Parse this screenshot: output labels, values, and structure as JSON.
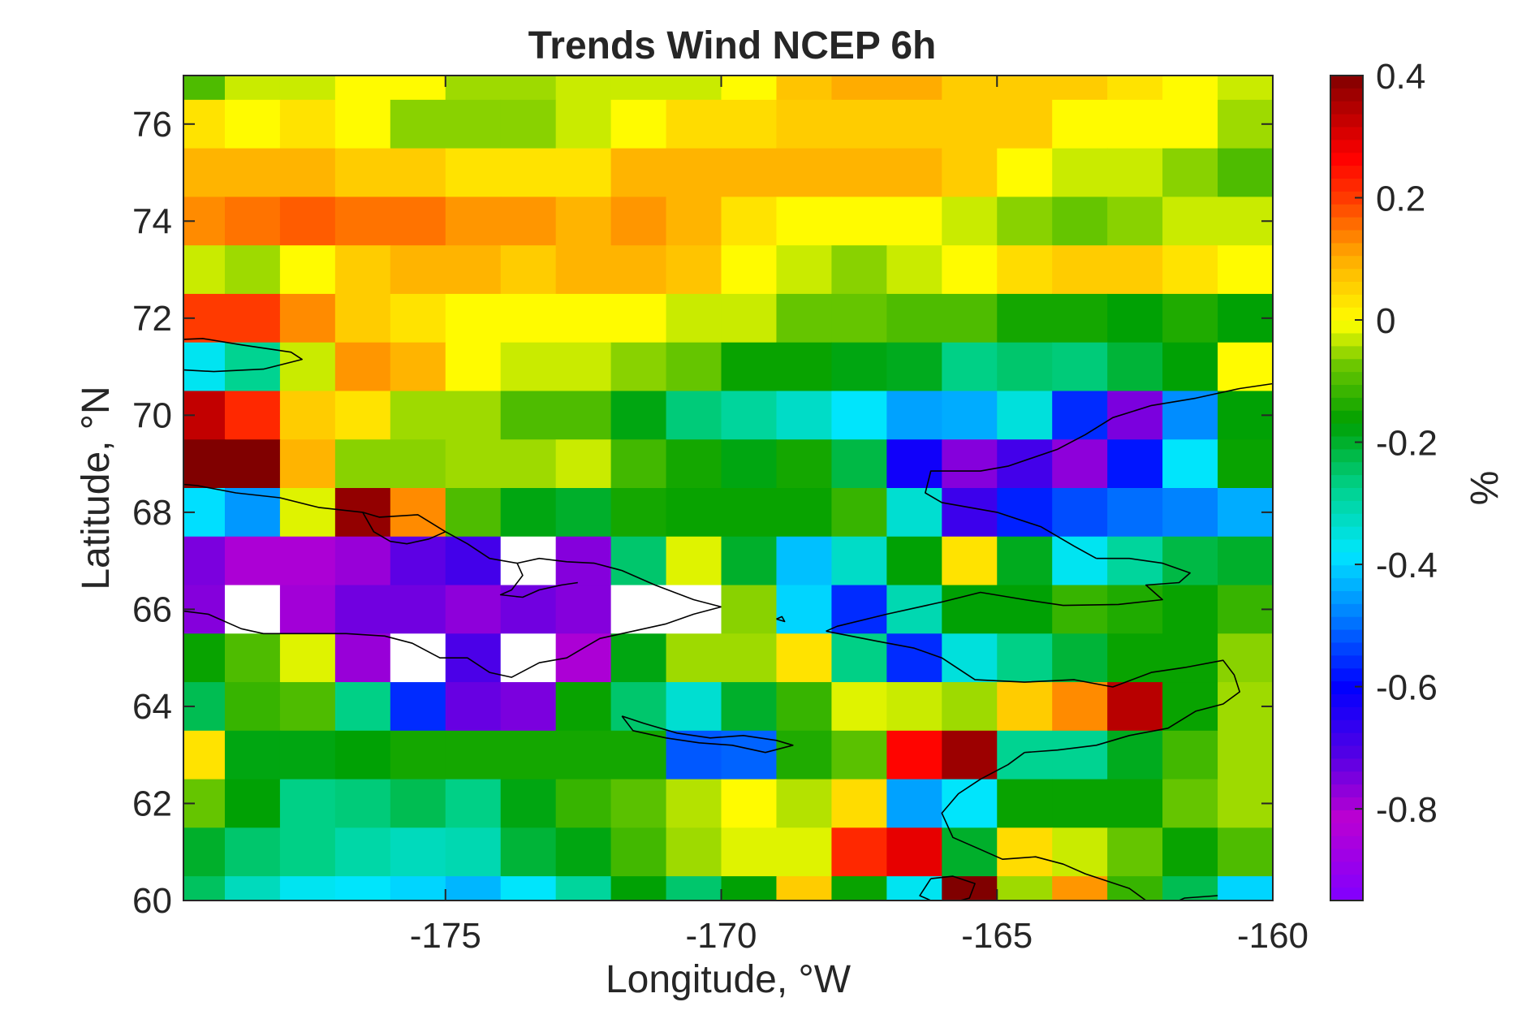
{
  "chart_data": {
    "type": "heatmap",
    "title": "Trends Wind NCEP 6h",
    "xlabel": "Longitude, °W",
    "ylabel": "Latitude, °N",
    "xlim": [
      -179.75,
      -160.0
    ],
    "ylim": [
      60.0,
      77.0
    ],
    "xticks": [
      -175,
      -170,
      -165,
      -160
    ],
    "xtick_labels": [
      "-175",
      "-170",
      "-165",
      "-160"
    ],
    "yticks": [
      60,
      62,
      64,
      66,
      68,
      70,
      72,
      74,
      76
    ],
    "ytick_labels": [
      "60",
      "62",
      "64",
      "66",
      "68",
      "70",
      "72",
      "74",
      "76"
    ],
    "colorbar": {
      "label": "%",
      "range": [
        -0.95,
        0.4
      ],
      "ticks": [
        0.4,
        0.2,
        0,
        -0.2,
        -0.4,
        -0.6,
        -0.8
      ],
      "tick_labels": [
        "0.4",
        "0.2",
        "0",
        "-0.2",
        "-0.4",
        "-0.6",
        "-0.8"
      ]
    },
    "grid": false,
    "legend": "colorbar right",
    "cell_size_deg": 1.0,
    "x_edges_first_last": [
      -179.5,
      -160.5
    ],
    "rows_lat_top_to_bottom": [
      77,
      76,
      75,
      74,
      73,
      72,
      71,
      70,
      69,
      68,
      67,
      66,
      65,
      64,
      63,
      62,
      61,
      60
    ],
    "values_top_to_bottom": [
      [
        -0.1,
        -0.03,
        -0.03,
        0.0,
        0.0,
        -0.05,
        -0.05,
        -0.03,
        -0.03,
        -0.03,
        0.0,
        0.07,
        0.1,
        0.1,
        0.06,
        0.06,
        0.06,
        0.03,
        0.0,
        -0.03
      ],
      [
        0.03,
        0.0,
        0.03,
        0.0,
        -0.06,
        -0.06,
        -0.06,
        -0.03,
        0.0,
        0.04,
        0.04,
        0.06,
        0.06,
        0.06,
        0.06,
        0.06,
        0.0,
        0.0,
        0.0,
        -0.05
      ],
      [
        0.09,
        0.09,
        0.09,
        0.06,
        0.06,
        0.03,
        0.03,
        0.03,
        0.09,
        0.09,
        0.09,
        0.09,
        0.09,
        0.09,
        0.06,
        0.0,
        -0.03,
        -0.03,
        -0.06,
        -0.1
      ],
      [
        0.13,
        0.15,
        0.17,
        0.15,
        0.15,
        0.12,
        0.12,
        0.09,
        0.12,
        0.09,
        0.03,
        0.0,
        0.0,
        0.0,
        -0.03,
        -0.06,
        -0.08,
        -0.06,
        -0.03,
        -0.03
      ],
      [
        -0.03,
        -0.05,
        0.0,
        0.06,
        0.09,
        0.09,
        0.06,
        0.09,
        0.09,
        0.07,
        0.0,
        -0.03,
        -0.06,
        -0.03,
        0.0,
        0.04,
        0.06,
        0.06,
        0.03,
        0.0
      ],
      [
        0.2,
        0.2,
        0.13,
        0.06,
        0.03,
        0.0,
        0.0,
        0.0,
        0.0,
        -0.03,
        -0.03,
        -0.08,
        -0.08,
        -0.1,
        -0.1,
        -0.15,
        -0.15,
        -0.17,
        -0.14,
        -0.17
      ],
      [
        -0.37,
        -0.28,
        -0.03,
        0.12,
        0.09,
        0.0,
        -0.03,
        -0.03,
        -0.06,
        -0.08,
        -0.16,
        -0.16,
        -0.18,
        -0.19,
        -0.27,
        -0.25,
        -0.26,
        -0.21,
        -0.17,
        0.0
      ],
      [
        0.33,
        0.22,
        0.06,
        0.03,
        -0.05,
        -0.05,
        -0.1,
        -0.1,
        -0.18,
        -0.26,
        -0.29,
        -0.33,
        -0.38,
        -0.45,
        -0.44,
        -0.35,
        -0.56,
        -0.75,
        -0.47,
        -0.17
      ],
      [
        0.4,
        0.4,
        0.09,
        -0.06,
        -0.06,
        -0.05,
        -0.05,
        -0.03,
        -0.11,
        -0.15,
        -0.18,
        -0.15,
        -0.22,
        -0.62,
        -0.76,
        -0.69,
        -0.77,
        -0.58,
        -0.38,
        -0.16
      ],
      [
        -0.39,
        -0.46,
        -0.02,
        0.38,
        0.13,
        -0.1,
        -0.18,
        -0.2,
        -0.15,
        -0.16,
        -0.16,
        -0.16,
        -0.12,
        -0.34,
        -0.68,
        -0.57,
        -0.53,
        -0.5,
        -0.48,
        -0.44
      ],
      [
        -0.75,
        -0.8,
        -0.8,
        -0.78,
        -0.72,
        -0.69,
        null,
        -0.76,
        -0.25,
        -0.02,
        -0.2,
        -0.42,
        -0.33,
        -0.17,
        0.03,
        -0.19,
        -0.37,
        -0.29,
        -0.22,
        -0.2
      ],
      [
        -0.76,
        null,
        -0.79,
        -0.74,
        -0.74,
        -0.77,
        -0.74,
        -0.76,
        null,
        null,
        -0.06,
        -0.4,
        -0.56,
        -0.31,
        -0.17,
        -0.17,
        -0.12,
        -0.14,
        -0.16,
        -0.12
      ],
      [
        -0.16,
        -0.1,
        -0.02,
        -0.78,
        null,
        -0.7,
        null,
        -0.8,
        -0.18,
        -0.05,
        -0.05,
        0.03,
        -0.27,
        -0.56,
        -0.35,
        -0.27,
        -0.21,
        -0.16,
        -0.16,
        -0.06
      ],
      [
        -0.23,
        -0.12,
        -0.1,
        -0.27,
        -0.56,
        -0.73,
        -0.75,
        -0.16,
        -0.25,
        -0.34,
        -0.2,
        -0.12,
        -0.02,
        -0.03,
        -0.05,
        0.06,
        0.13,
        0.34,
        -0.16,
        -0.05
      ],
      [
        0.03,
        -0.18,
        -0.18,
        -0.17,
        -0.15,
        -0.15,
        -0.15,
        -0.15,
        -0.15,
        -0.52,
        -0.51,
        -0.14,
        -0.09,
        0.26,
        0.37,
        -0.28,
        -0.28,
        -0.19,
        -0.11,
        -0.05
      ],
      [
        -0.08,
        -0.17,
        -0.27,
        -0.26,
        -0.23,
        -0.27,
        -0.18,
        -0.12,
        -0.09,
        -0.04,
        0.0,
        -0.04,
        0.04,
        -0.45,
        -0.38,
        -0.16,
        -0.16,
        -0.16,
        -0.08,
        -0.05
      ],
      [
        -0.2,
        -0.25,
        -0.27,
        -0.3,
        -0.32,
        -0.31,
        -0.21,
        -0.18,
        -0.11,
        -0.05,
        -0.02,
        -0.02,
        0.22,
        0.29,
        -0.2,
        0.04,
        -0.03,
        -0.08,
        -0.16,
        -0.1
      ],
      [
        -0.24,
        -0.32,
        -0.37,
        -0.38,
        -0.4,
        -0.43,
        -0.38,
        -0.29,
        -0.17,
        -0.25,
        -0.17,
        0.06,
        -0.16,
        -0.37,
        0.4,
        -0.05,
        0.12,
        -0.12,
        -0.23,
        -0.4
      ]
    ]
  },
  "coastline_color": "#000000",
  "missing_cell_color": "#ffffff"
}
